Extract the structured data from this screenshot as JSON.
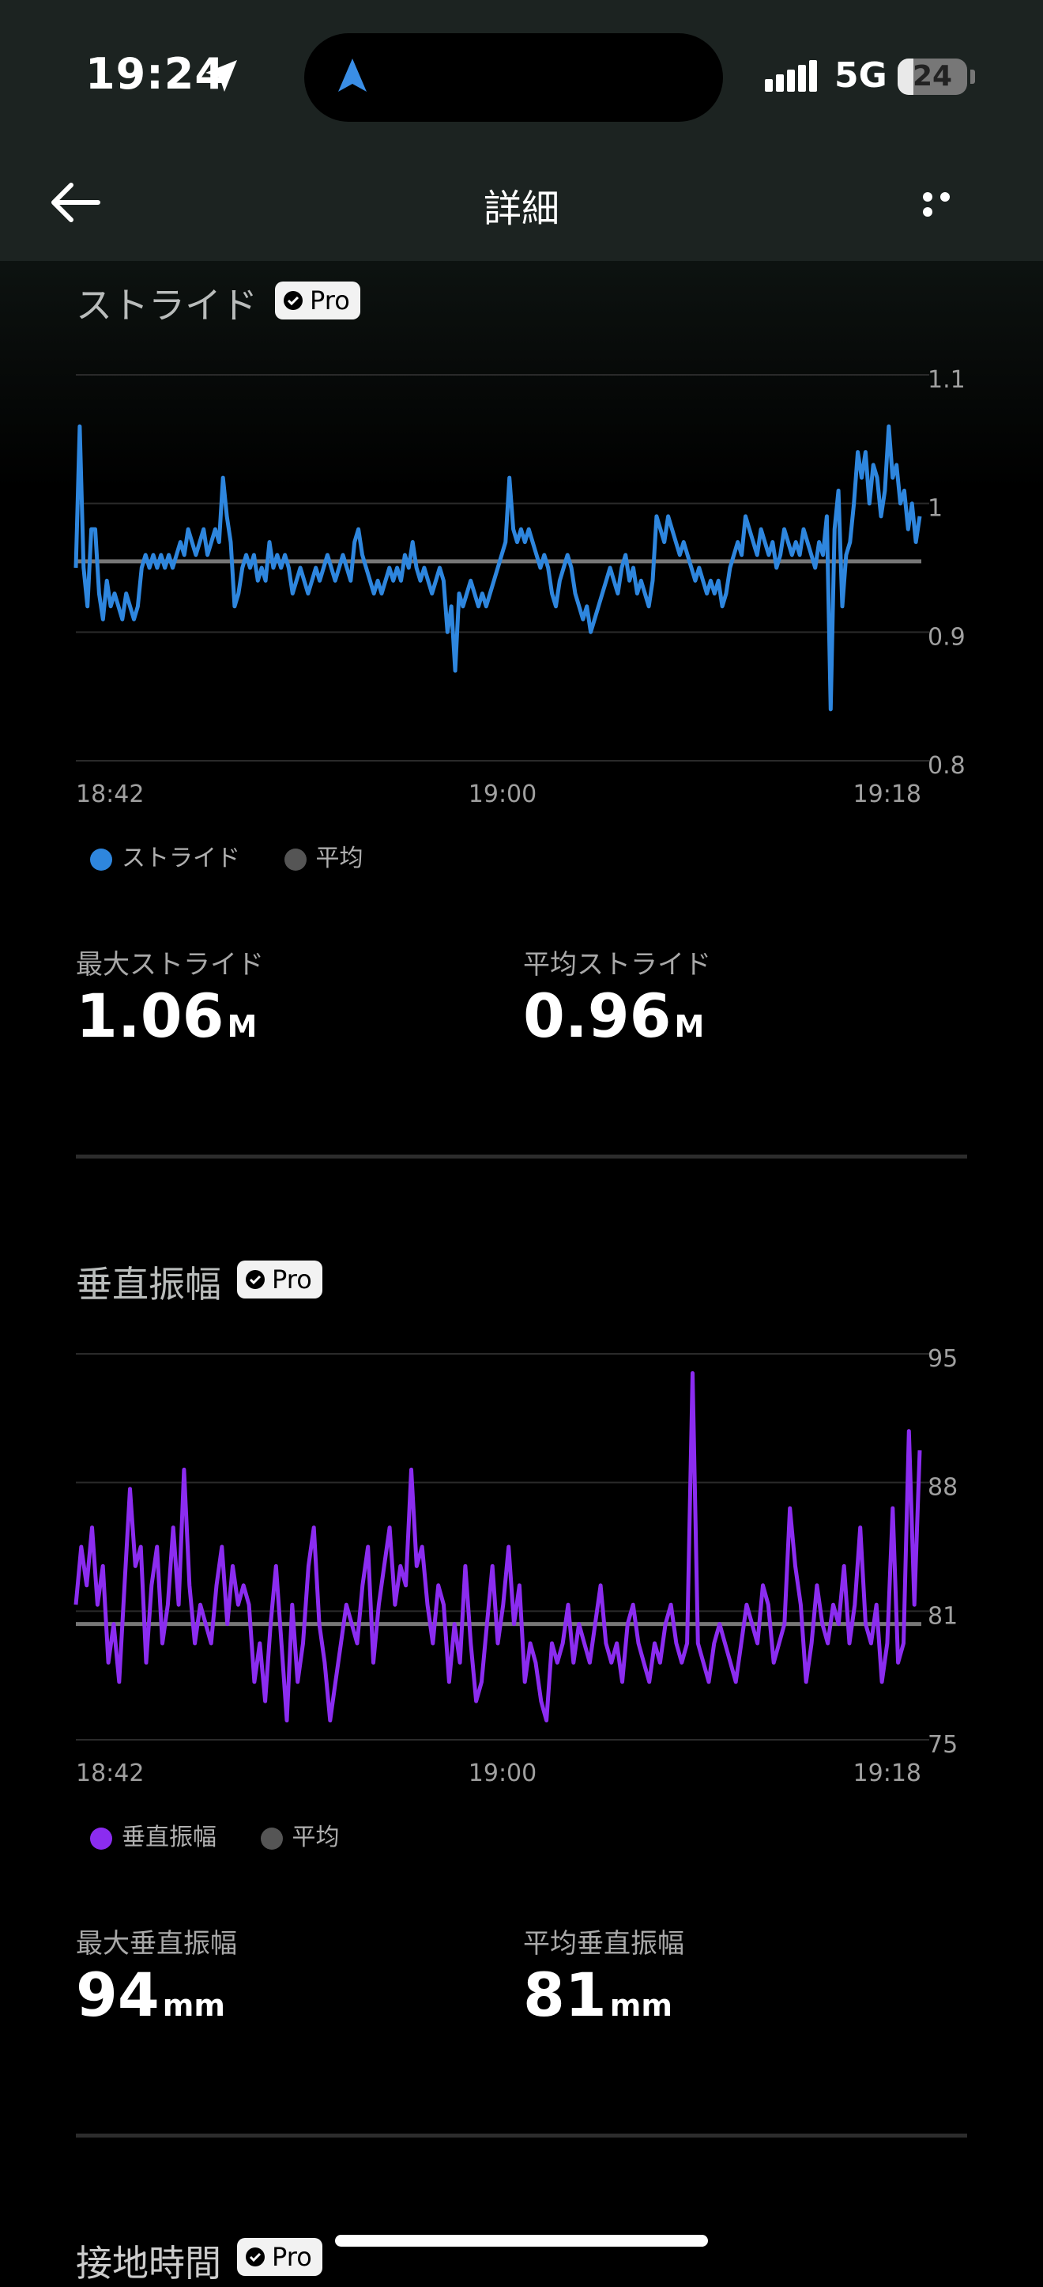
{
  "status_bar": {
    "time": "19:24",
    "network": "5G",
    "battery": "24"
  },
  "header": {
    "title": "詳細"
  },
  "icons": {
    "back": "arrow-left-icon",
    "more": "more-horizontal-icon",
    "location": "location-arrow-icon",
    "navigation": "navigation-arrow-icon",
    "pro": "verified-badge-icon"
  },
  "colors": {
    "stride": "#2e86de",
    "vertical": "#8b2cf0",
    "average": "#777777"
  },
  "stride": {
    "title": "ストライド",
    "badge": "Pro",
    "legend_series": "ストライド",
    "legend_avg": "平均",
    "max_label": "最大ストライド",
    "max_value": "1.06",
    "max_unit": "M",
    "avg_label": "平均ストライド",
    "avg_value": "0.96",
    "avg_unit": "M"
  },
  "vertical": {
    "title": "垂直振幅",
    "badge": "Pro",
    "legend_series": "垂直振幅",
    "legend_avg": "平均",
    "max_label": "最大垂直振幅",
    "max_value": "94",
    "max_unit": "mm",
    "avg_label": "平均垂直振幅",
    "avg_value": "81",
    "avg_unit": "mm"
  },
  "next_section": {
    "title": "接地時間",
    "badge": "Pro"
  },
  "chart_data": [
    {
      "type": "line",
      "x_ticks": [
        "18:42",
        "19:00",
        "19:18"
      ],
      "y_ticks": [
        "1.1",
        "1",
        "0.9",
        "0.8"
      ],
      "ylim": [
        0.8,
        1.1
      ],
      "average": 0.955,
      "series": [
        {
          "name": "ストライド",
          "values": [
            0.95,
            1.06,
            0.95,
            0.92,
            0.98,
            0.98,
            0.93,
            0.91,
            0.94,
            0.92,
            0.93,
            0.92,
            0.91,
            0.93,
            0.92,
            0.91,
            0.92,
            0.95,
            0.96,
            0.95,
            0.96,
            0.95,
            0.96,
            0.95,
            0.96,
            0.95,
            0.96,
            0.97,
            0.96,
            0.98,
            0.97,
            0.96,
            0.97,
            0.98,
            0.96,
            0.97,
            0.98,
            0.97,
            1.02,
            0.99,
            0.97,
            0.92,
            0.93,
            0.95,
            0.96,
            0.95,
            0.96,
            0.94,
            0.95,
            0.94,
            0.97,
            0.95,
            0.96,
            0.95,
            0.96,
            0.95,
            0.93,
            0.94,
            0.95,
            0.94,
            0.93,
            0.94,
            0.95,
            0.94,
            0.95,
            0.96,
            0.95,
            0.94,
            0.95,
            0.96,
            0.95,
            0.94,
            0.97,
            0.98,
            0.96,
            0.95,
            0.94,
            0.93,
            0.94,
            0.93,
            0.94,
            0.95,
            0.94,
            0.95,
            0.94,
            0.96,
            0.95,
            0.97,
            0.95,
            0.94,
            0.95,
            0.94,
            0.93,
            0.94,
            0.95,
            0.94,
            0.9,
            0.92,
            0.87,
            0.93,
            0.92,
            0.93,
            0.94,
            0.93,
            0.92,
            0.93,
            0.92,
            0.93,
            0.94,
            0.95,
            0.96,
            0.97,
            1.02,
            0.98,
            0.97,
            0.98,
            0.97,
            0.98,
            0.97,
            0.96,
            0.95,
            0.96,
            0.95,
            0.93,
            0.92,
            0.94,
            0.95,
            0.96,
            0.95,
            0.93,
            0.92,
            0.91,
            0.92,
            0.9,
            0.91,
            0.92,
            0.93,
            0.94,
            0.95,
            0.94,
            0.93,
            0.95,
            0.96,
            0.94,
            0.95,
            0.93,
            0.94,
            0.93,
            0.92,
            0.94,
            0.99,
            0.98,
            0.97,
            0.99,
            0.98,
            0.97,
            0.96,
            0.97,
            0.96,
            0.95,
            0.94,
            0.95,
            0.94,
            0.93,
            0.94,
            0.93,
            0.94,
            0.92,
            0.93,
            0.95,
            0.96,
            0.97,
            0.96,
            0.99,
            0.98,
            0.97,
            0.96,
            0.98,
            0.97,
            0.96,
            0.97,
            0.95,
            0.96,
            0.98,
            0.97,
            0.96,
            0.97,
            0.96,
            0.98,
            0.97,
            0.96,
            0.95,
            0.97,
            0.96,
            0.99,
            0.84,
            0.98,
            1.01,
            0.92,
            0.96,
            0.97,
            1.0,
            1.04,
            1.02,
            1.04,
            1.0,
            1.03,
            1.02,
            0.99,
            1.01,
            1.06,
            1.02,
            1.03,
            1.0,
            1.01,
            0.98,
            1.0,
            0.97,
            0.99
          ]
        }
      ]
    },
    {
      "type": "line",
      "x_ticks": [
        "18:42",
        "19:00",
        "19:18"
      ],
      "y_ticks": [
        "95",
        "88",
        "81",
        "75"
      ],
      "ylim": [
        75,
        95
      ],
      "average": 81,
      "series": [
        {
          "name": "垂直振幅",
          "values": [
            82,
            85,
            83,
            86,
            82,
            84,
            79,
            81,
            78,
            83,
            88,
            84,
            85,
            79,
            83,
            85,
            80,
            82,
            86,
            82,
            89,
            83,
            80,
            82,
            81,
            80,
            83,
            85,
            81,
            84,
            82,
            83,
            82,
            78,
            80,
            77,
            81,
            84,
            80,
            76,
            82,
            78,
            80,
            84,
            86,
            81,
            79,
            76,
            78,
            80,
            82,
            81,
            80,
            83,
            85,
            79,
            82,
            84,
            86,
            82,
            84,
            83,
            89,
            84,
            85,
            82,
            80,
            83,
            82,
            78,
            81,
            79,
            84,
            80,
            77,
            78,
            81,
            84,
            80,
            82,
            85,
            81,
            83,
            78,
            80,
            79,
            77,
            76,
            80,
            79,
            80,
            82,
            79,
            81,
            80,
            79,
            81,
            83,
            80,
            79,
            80,
            78,
            81,
            82,
            80,
            79,
            78,
            80,
            79,
            81,
            82,
            80,
            79,
            80,
            94,
            80,
            79,
            78,
            80,
            81,
            80,
            79,
            78,
            80,
            82,
            81,
            80,
            83,
            82,
            79,
            80,
            81,
            87,
            84,
            82,
            78,
            80,
            83,
            81,
            80,
            82,
            81,
            84,
            80,
            82,
            86,
            81,
            80,
            82,
            78,
            80,
            87,
            79,
            80,
            91,
            82,
            90
          ]
        }
      ]
    }
  ]
}
